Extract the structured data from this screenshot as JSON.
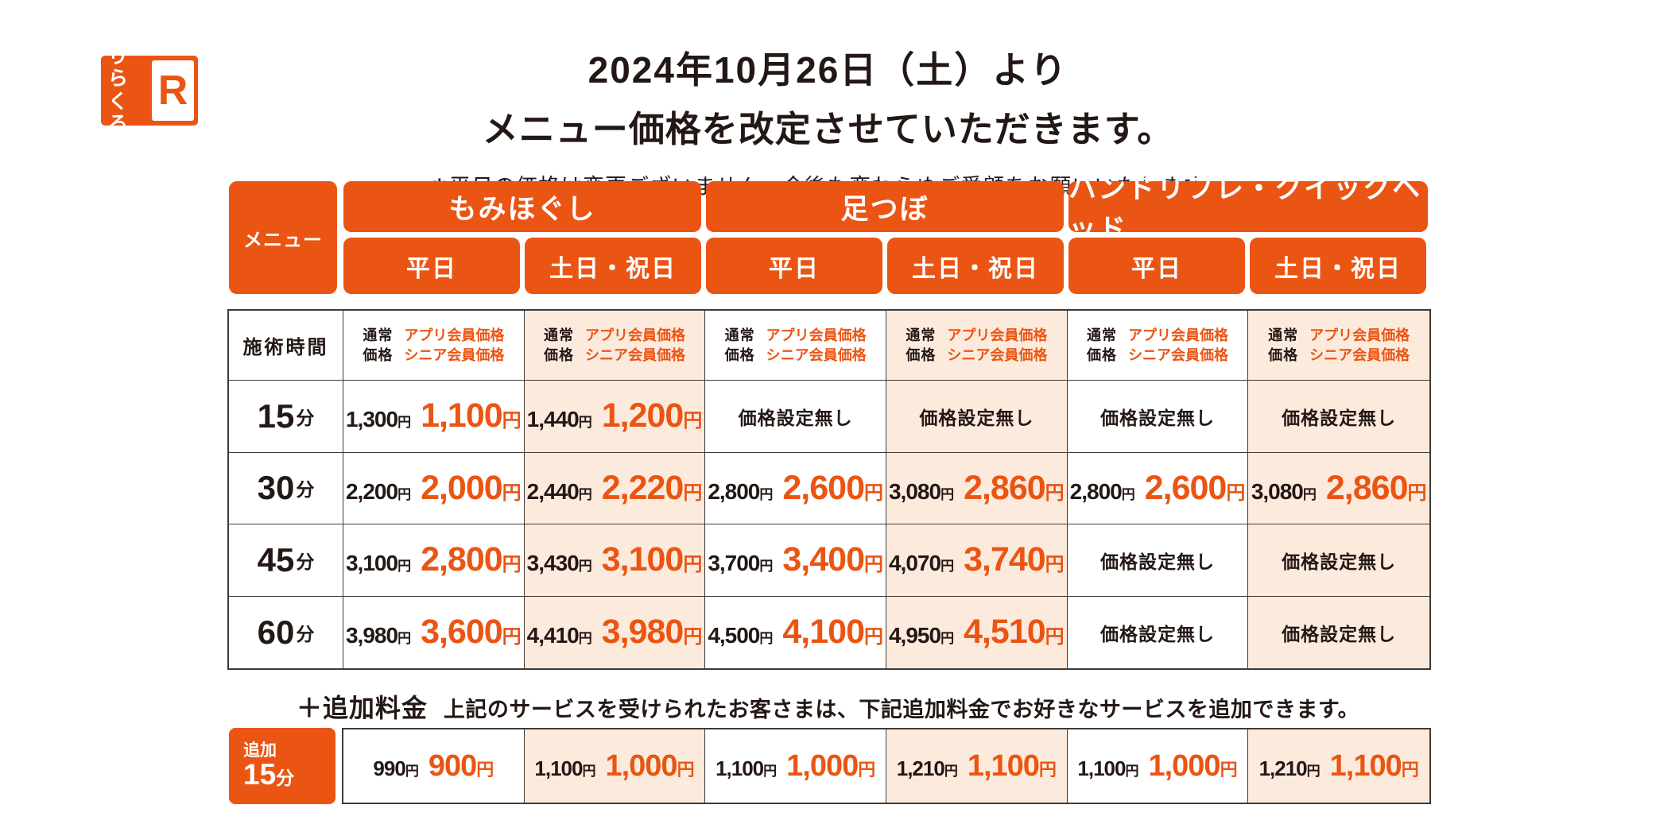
{
  "logo": {
    "kana_line1": "りら",
    "kana_line2": "くる",
    "mark": "R"
  },
  "headline": {
    "title_line1": "2024年10月26日（土）より",
    "title_line2": "メニュー価格を改定させていただきます。",
    "note": "※平日の価格は変更ございません。今後も変わらぬご愛顧をお願いいたします。"
  },
  "header": {
    "menu_label": "メニュー",
    "categories": [
      "もみほぐし",
      "足つぼ",
      "ハンドリフレ・クイックヘッド"
    ],
    "days": [
      "平日",
      "土日・祝日",
      "平日",
      "土日・祝日",
      "平日",
      "土日・祝日"
    ]
  },
  "table": {
    "time_header": "施術時間",
    "normal_l1": "通常",
    "normal_l2": "価格",
    "member_l1": "アプリ会員価格",
    "member_l2": "シニア会員価格",
    "no_price": "価格設定無し",
    "yen": "円",
    "minute_unit": "分",
    "rows": [
      {
        "minutes": "15",
        "cells": [
          {
            "normal": "1,300",
            "member": "1,100"
          },
          {
            "normal": "1,440",
            "member": "1,200"
          },
          {
            "none": true
          },
          {
            "none": true
          },
          {
            "none": true
          },
          {
            "none": true
          }
        ]
      },
      {
        "minutes": "30",
        "cells": [
          {
            "normal": "2,200",
            "member": "2,000"
          },
          {
            "normal": "2,440",
            "member": "2,220"
          },
          {
            "normal": "2,800",
            "member": "2,600"
          },
          {
            "normal": "3,080",
            "member": "2,860"
          },
          {
            "normal": "2,800",
            "member": "2,600"
          },
          {
            "normal": "3,080",
            "member": "2,860"
          }
        ]
      },
      {
        "minutes": "45",
        "cells": [
          {
            "normal": "3,100",
            "member": "2,800"
          },
          {
            "normal": "3,430",
            "member": "3,100"
          },
          {
            "normal": "3,700",
            "member": "3,400"
          },
          {
            "normal": "4,070",
            "member": "3,740"
          },
          {
            "none": true
          },
          {
            "none": true
          }
        ]
      },
      {
        "minutes": "60",
        "cells": [
          {
            "normal": "3,980",
            "member": "3,600"
          },
          {
            "normal": "4,410",
            "member": "3,980"
          },
          {
            "normal": "4,500",
            "member": "4,100"
          },
          {
            "normal": "4,950",
            "member": "4,510"
          },
          {
            "none": true
          },
          {
            "none": true
          }
        ]
      }
    ]
  },
  "addon": {
    "title": "＋追加料金",
    "description": "上記のサービスを受けられたお客さまは、下記追加料金でお好きなサービスを追加できます。",
    "badge_small": "追加",
    "badge_minutes": "15",
    "badge_unit": "分",
    "cells": [
      {
        "normal": "990",
        "member": "900"
      },
      {
        "normal": "1,100",
        "member": "1,000"
      },
      {
        "normal": "1,100",
        "member": "1,000"
      },
      {
        "normal": "1,210",
        "member": "1,100"
      },
      {
        "normal": "1,100",
        "member": "1,000"
      },
      {
        "normal": "1,210",
        "member": "1,100"
      }
    ]
  },
  "colors": {
    "brand_orange": "#ea5514",
    "weekend_bg": "#fcebdd",
    "text_black": "#231815",
    "border": "#3e3a39"
  }
}
